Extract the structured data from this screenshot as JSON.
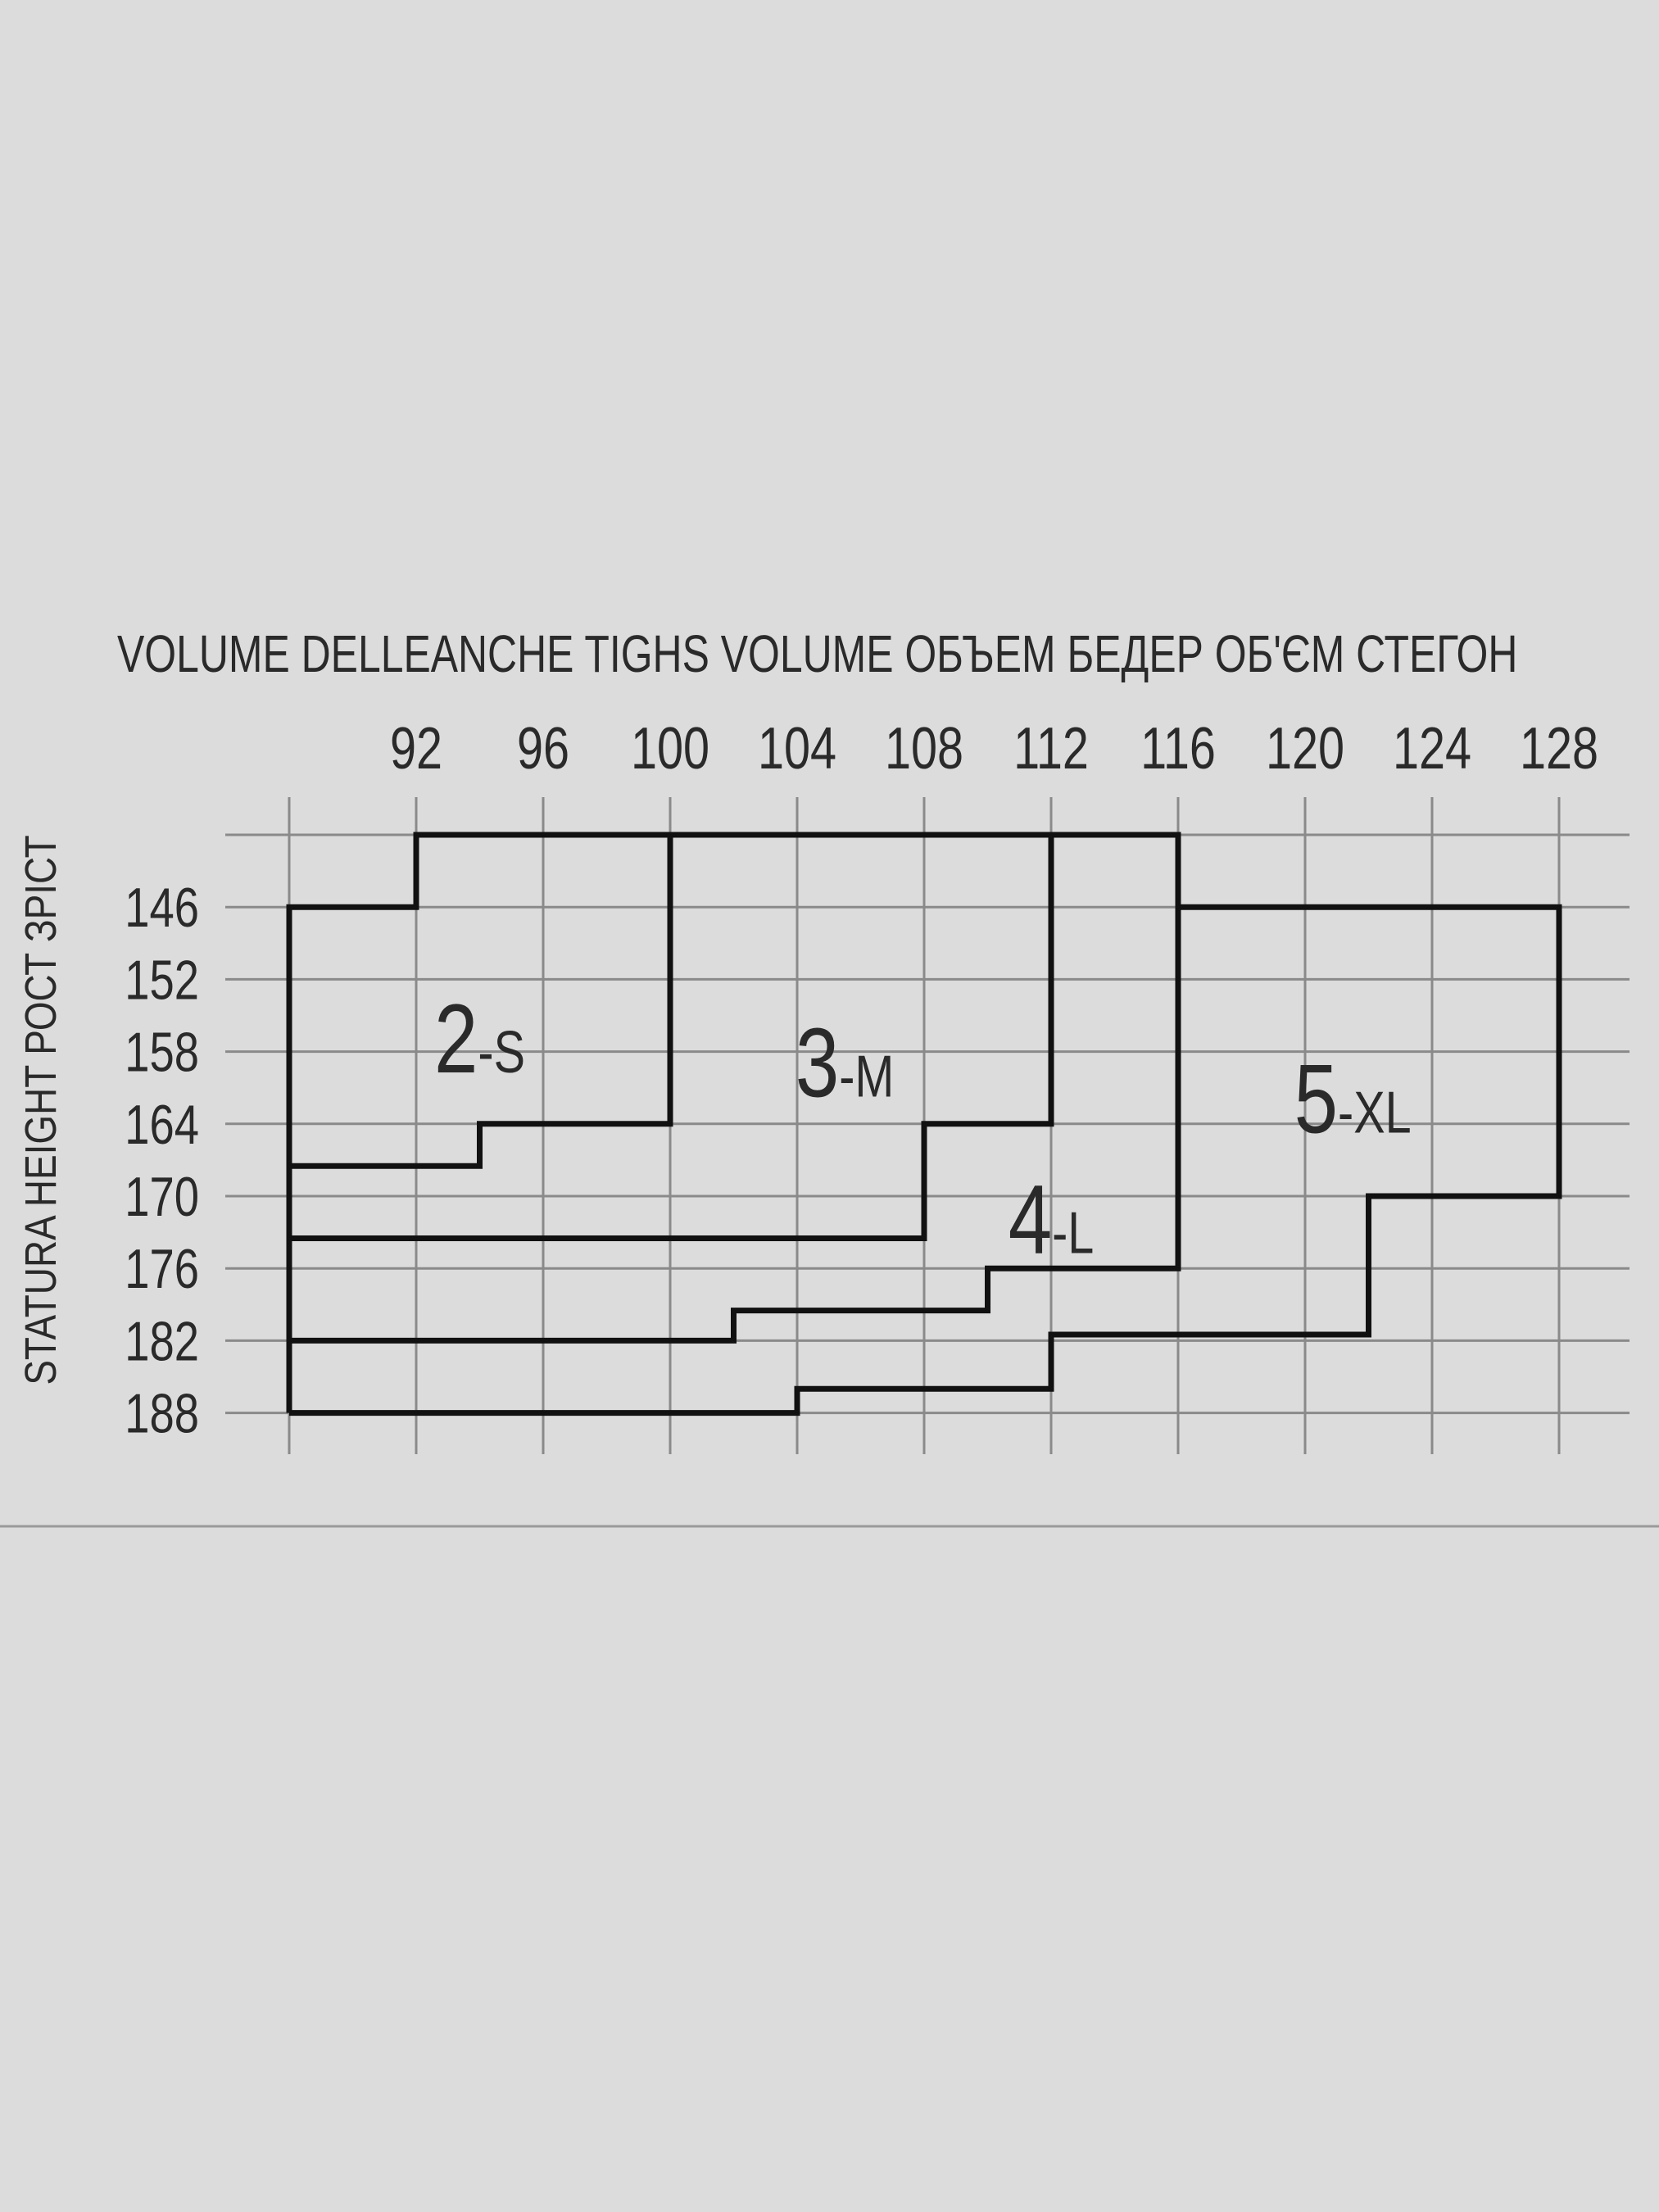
{
  "chart_data": {
    "type": "table",
    "title": "VOLUME DELLEANCHE  TIGHS VOLUME  ОБЪЕМ БЕДЕР  ОБ'ЄМ СТЕГОН",
    "ylabel": "STATURA  HEIGHT  РОСТ  ЗРІСТ",
    "x_ticks": [
      92,
      96,
      100,
      104,
      108,
      112,
      116,
      120,
      124,
      128
    ],
    "y_ticks": [
      146,
      152,
      158,
      164,
      170,
      176,
      182,
      188
    ],
    "xlim": [
      88,
      128
    ],
    "ylim": [
      140,
      188
    ],
    "grid": true,
    "sizes": [
      {
        "num": "2",
        "name": "-S",
        "label_at": [
          94,
          157
        ]
      },
      {
        "num": "3",
        "name": "-M",
        "label_at": [
          105.5,
          159
        ]
      },
      {
        "num": "4",
        "name": "-L",
        "label_at": [
          112,
          172
        ]
      },
      {
        "num": "5",
        "name": "-XL",
        "label_at": [
          121.5,
          162
        ]
      }
    ],
    "boundaries": [
      {
        "name": "S",
        "points": [
          [
            88,
            188
          ],
          [
            88,
            146
          ],
          [
            92,
            146
          ],
          [
            92,
            140
          ],
          [
            100,
            140
          ],
          [
            100,
            164
          ],
          [
            94,
            164
          ],
          [
            94,
            167.5
          ],
          [
            88,
            167.5
          ]
        ]
      },
      {
        "name": "M",
        "points": [
          [
            100,
            140
          ],
          [
            112,
            140
          ],
          [
            112,
            164
          ],
          [
            108,
            164
          ],
          [
            108,
            173.5
          ],
          [
            88,
            173.5
          ]
        ]
      },
      {
        "name": "L",
        "points": [
          [
            112,
            140
          ],
          [
            116,
            140
          ],
          [
            116,
            176
          ],
          [
            110,
            176
          ],
          [
            110,
            179.5
          ],
          [
            102,
            179.5
          ],
          [
            102,
            182
          ],
          [
            88,
            182
          ]
        ]
      },
      {
        "name": "XL",
        "points": [
          [
            116,
            146
          ],
          [
            128,
            146
          ],
          [
            128,
            170
          ],
          [
            122,
            170
          ],
          [
            122,
            181.5
          ],
          [
            112,
            181.5
          ],
          [
            112,
            186
          ],
          [
            104,
            186
          ],
          [
            104,
            188
          ],
          [
            88,
            188
          ]
        ]
      }
    ],
    "colors": {
      "background": "#dcdcdc",
      "grid": "#8a8a8a",
      "outline": "#111111",
      "text": "#2a2a2a"
    }
  }
}
